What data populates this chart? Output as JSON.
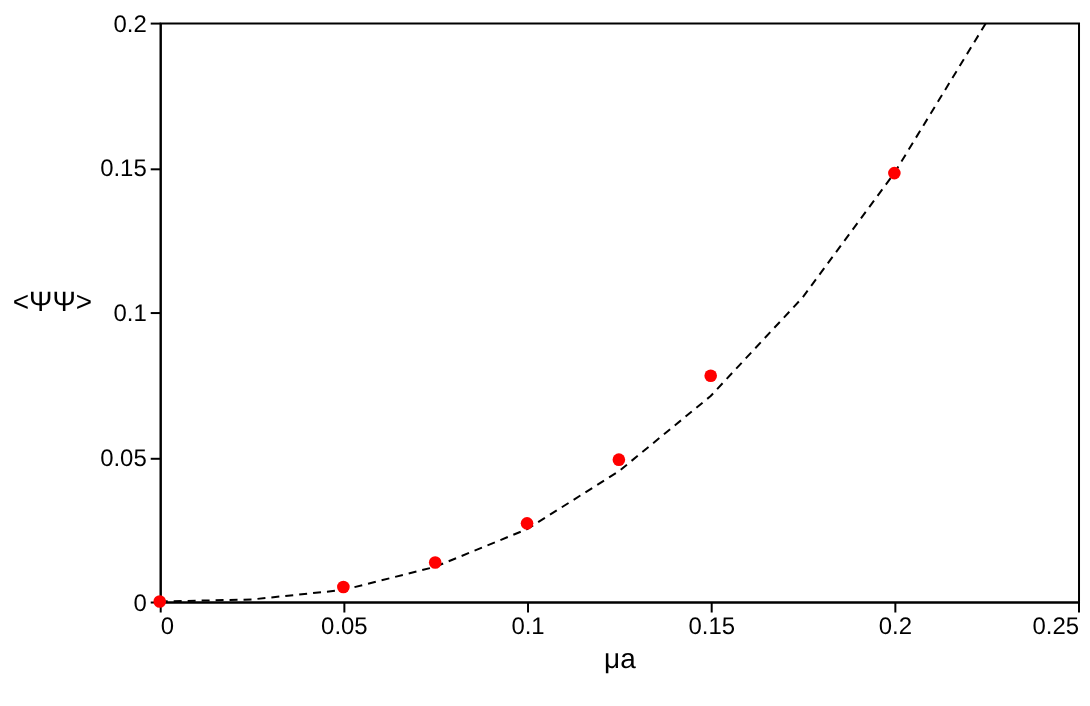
{
  "chart_data": {
    "type": "scatter",
    "xlabel": "μa",
    "ylabel": "<ΨΨ>",
    "xlim": [
      0,
      0.25
    ],
    "xticks": [
      0,
      0.05,
      0.1,
      0.15,
      0.2,
      0.25
    ],
    "ylim": [
      0,
      0.2
    ],
    "yticks": [
      0,
      0.05,
      0.1,
      0.15,
      0.2
    ],
    "grid": false,
    "series": [
      {
        "type": "line",
        "line_style": "dashed",
        "marker": "none",
        "color": "#000000",
        "x": [
          0,
          0.025,
          0.05,
          0.075,
          0.1,
          0.125,
          0.15,
          0.175,
          0.2,
          0.225
        ],
        "values": [
          0,
          0.0007,
          0.004,
          0.012,
          0.025,
          0.045,
          0.071,
          0.105,
          0.148,
          0.2
        ]
      },
      {
        "marker": "circle",
        "color": "#ff0000",
        "x": [
          0,
          0.05,
          0.075,
          0.1,
          0.125,
          0.15,
          0.2
        ],
        "values": [
          0,
          0.005,
          0.0135,
          0.027,
          0.049,
          0.078,
          0.148
        ]
      }
    ]
  }
}
